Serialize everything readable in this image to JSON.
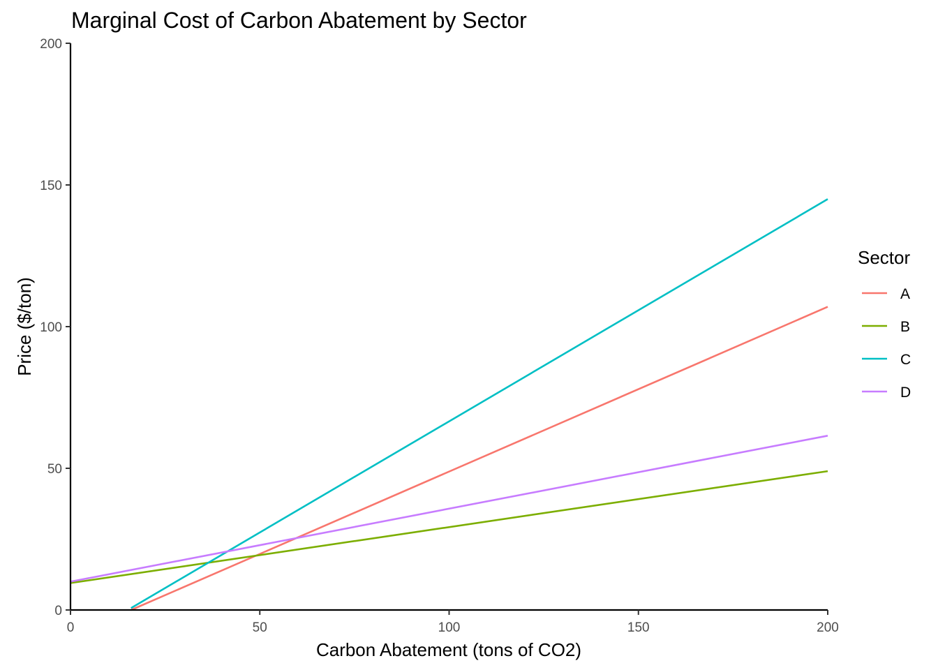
{
  "chart_data": {
    "type": "line",
    "title": "Marginal Cost of Carbon Abatement by Sector",
    "xlabel": "Carbon Abatement (tons of CO2)",
    "ylabel": "Price ($/ton)",
    "xlim": [
      0,
      200
    ],
    "ylim": [
      0,
      200
    ],
    "xticks": [
      0,
      50,
      100,
      150,
      200
    ],
    "yticks": [
      0,
      50,
      100,
      150,
      200
    ],
    "grid": false,
    "legend": {
      "title": "Sector",
      "position": "right"
    },
    "series": [
      {
        "name": "A",
        "color": "#F8766D",
        "x": [
          16,
          200
        ],
        "y": [
          0,
          107
        ]
      },
      {
        "name": "B",
        "color": "#7CAE00",
        "x": [
          0,
          200
        ],
        "y": [
          9.5,
          49
        ]
      },
      {
        "name": "C",
        "color": "#00BFC4",
        "x": [
          16,
          200
        ],
        "y": [
          0.7,
          145
        ]
      },
      {
        "name": "D",
        "color": "#C77CFF",
        "x": [
          0,
          200
        ],
        "y": [
          10,
          61.5
        ]
      }
    ]
  }
}
